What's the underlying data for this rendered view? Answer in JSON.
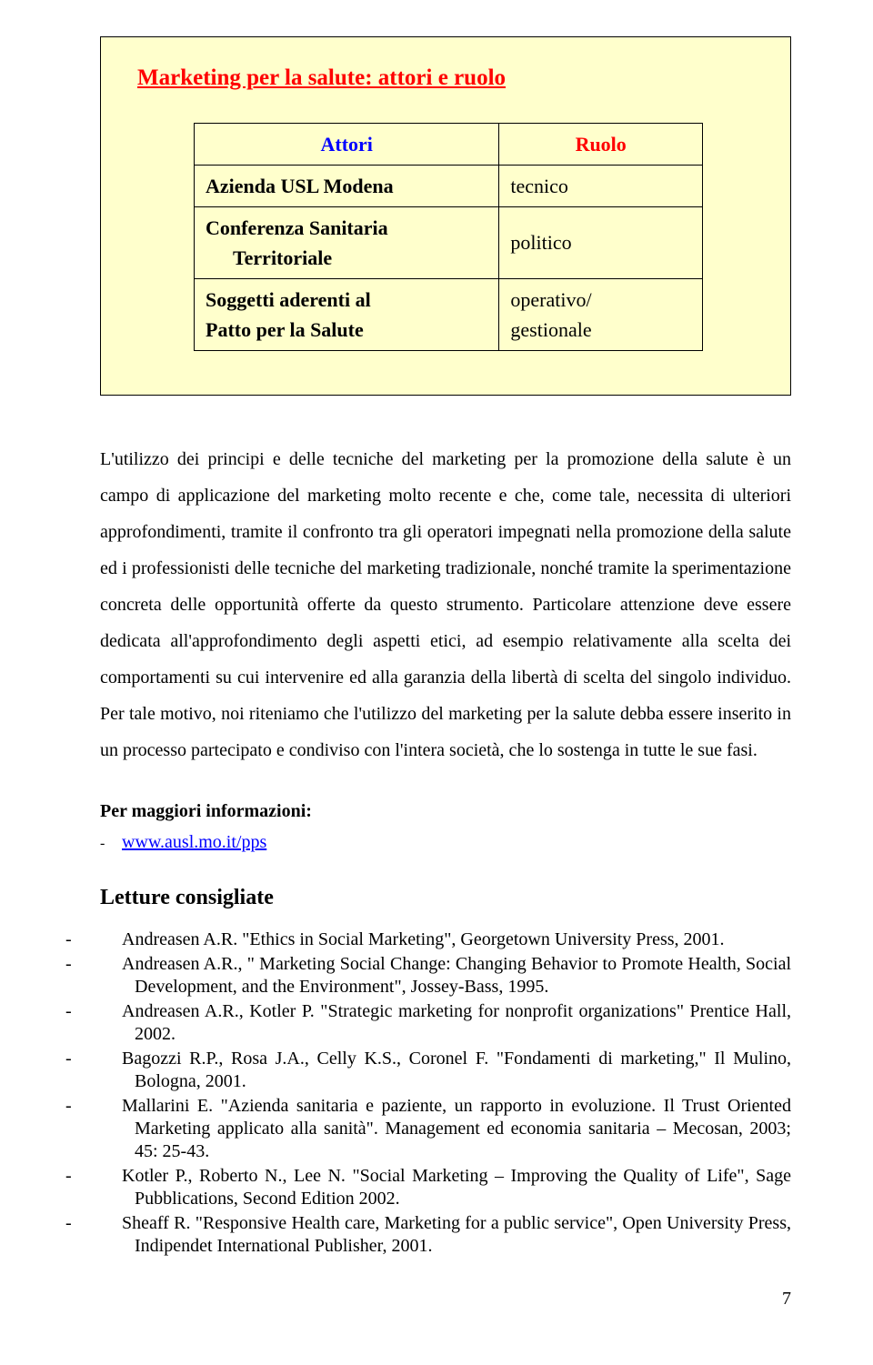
{
  "infobox": {
    "title": "Marketing per la salute: attori e ruolo",
    "headers": {
      "attori": "Attori",
      "ruolo": "Ruolo"
    },
    "rows": [
      {
        "actor": "Azienda USL Modena",
        "role": "tecnico"
      },
      {
        "actor": "Conferenza Sanitaria",
        "actor2": "Territoriale",
        "role": "politico"
      },
      {
        "actor": "Soggetti aderenti al",
        "actor2": "Patto per la Salute",
        "role": "operativo/",
        "role2": "gestionale"
      }
    ],
    "styling": {
      "background_color": "#ffffcc",
      "border_color": "#000000",
      "title_color": "#ff0000",
      "header_attori_color": "#0000ff",
      "header_ruolo_color": "#ff0000",
      "title_fontsize": 25,
      "cell_fontsize": 22
    }
  },
  "body_paragraph": "L'utilizzo dei principi e delle tecniche del marketing per la promozione della salute è un campo di applicazione del marketing molto recente e che, come tale, necessita di ulteriori approfondimenti, tramite il confronto tra gli operatori impegnati nella promozione della salute ed i professionisti delle tecniche del marketing tradizionale, nonché tramite la sperimentazione concreta delle opportunità offerte da questo strumento. Particolare attenzione deve essere dedicata all'approfondimento degli aspetti etici, ad esempio relativamente alla scelta dei comportamenti su cui intervenire ed alla garanzia della libertà di scelta del singolo individuo. Per tale motivo, noi riteniamo che l'utilizzo del marketing per la salute debba essere inserito in un processo partecipato e condiviso con l'intera società, che lo sostenga in tutte le sue fasi.",
  "more_info": {
    "label": "Per maggiori informazioni:",
    "link": "www.ausl.mo.it/pps"
  },
  "letture": {
    "title": "Letture consigliate",
    "refs": [
      "Andreasen A.R. \"Ethics in Social Marketing\", Georgetown University Press, 2001.",
      "Andreasen A.R., \" Marketing Social Change: Changing Behavior to Promote Health, Social Development, and the Environment\", Jossey-Bass, 1995.",
      "Andreasen A.R., Kotler P. \"Strategic marketing for nonprofit organizations\" Prentice Hall, 2002.",
      "Bagozzi R.P., Rosa J.A., Celly K.S., Coronel F. \"Fondamenti di marketing,\" Il Mulino, Bologna, 2001.",
      "Mallarini E. \"Azienda sanitaria e paziente, un rapporto in evoluzione. Il Trust Oriented Marketing applicato alla sanità\". Management ed economia sanitaria – Mecosan, 2003; 45: 25-43.",
      "Kotler P., Roberto N., Lee N. \"Social Marketing – Improving the Quality of Life\", Sage Pubblications, Second Edition 2002.",
      "Sheaff R. \"Responsive Health care, Marketing for a public service\", Open University Press, Indipendet International Publisher, 2001."
    ]
  },
  "page_number": "7"
}
